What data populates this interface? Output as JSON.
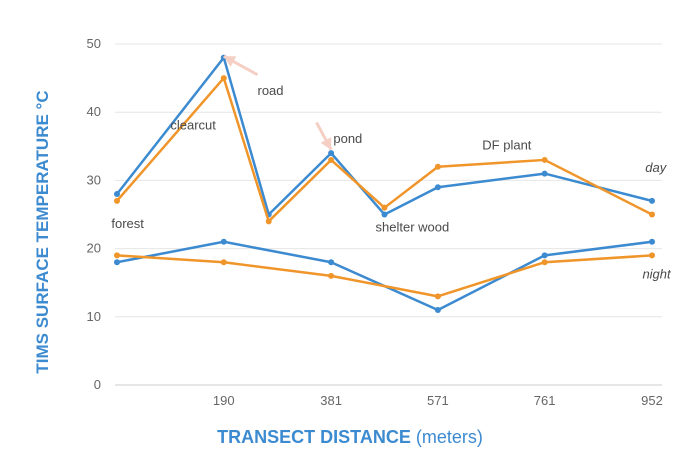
{
  "chart_data": {
    "type": "line",
    "ylabel": "TIMS SURFACE TEMPERATURE °C",
    "xlabel_bold": "TRANSECT DISTANCE",
    "xlabel_rest": "(meters)",
    "ylim": [
      0,
      50
    ],
    "yticks": [
      "0",
      "10",
      "20",
      "30",
      "40",
      "50"
    ],
    "grid": true,
    "x": [
      0,
      190,
      270,
      381,
      476,
      571,
      761,
      952
    ],
    "xticks": [
      {
        "value": 190,
        "label": "190"
      },
      {
        "value": 381,
        "label": "381"
      },
      {
        "value": 571,
        "label": "571"
      },
      {
        "value": 761,
        "label": "761"
      },
      {
        "value": 952,
        "label": "952"
      }
    ],
    "series": [
      {
        "group": "day",
        "color": "#3c8ad0",
        "values": [
          28,
          48,
          25,
          34,
          25,
          29,
          31,
          27
        ]
      },
      {
        "group": "day",
        "color": "#f0952a",
        "values": [
          27,
          45,
          24,
          33,
          26,
          32,
          33,
          25
        ]
      },
      {
        "group": "night",
        "color": "#3c8ad0",
        "values": [
          18,
          21,
          null,
          18,
          null,
          11,
          19,
          21
        ]
      },
      {
        "group": "night",
        "color": "#f0952a",
        "values": [
          19,
          18,
          null,
          16,
          null,
          13,
          18,
          19
        ]
      }
    ],
    "annotations": [
      {
        "text": "clearcut",
        "x": 95,
        "y": 37.5,
        "style": "normal"
      },
      {
        "text": "road",
        "x": 250,
        "y": 42.5,
        "style": "normal"
      },
      {
        "text": "pond",
        "x": 385,
        "y": 35.5,
        "style": "normal"
      },
      {
        "text": "DF plant",
        "x": 650,
        "y": 34.5,
        "style": "normal"
      },
      {
        "text": "forest",
        "x": -10,
        "y": 23,
        "style": "normal"
      },
      {
        "text": "shelter wood",
        "x": 460,
        "y": 22.5,
        "style": "normal"
      },
      {
        "text": "day",
        "x": 940,
        "y": 31.2,
        "style": "italic"
      },
      {
        "text": "night",
        "x": 935,
        "y": 15.6,
        "style": "italic"
      }
    ],
    "arrows": [
      {
        "from_x": 250,
        "from_y": 45.5,
        "to_x": 190,
        "to_y": 48.2
      },
      {
        "from_x": 355,
        "from_y": 38.5,
        "to_x": 381,
        "to_y": 34.5
      }
    ],
    "arrow_color": "#f5cfc4"
  }
}
